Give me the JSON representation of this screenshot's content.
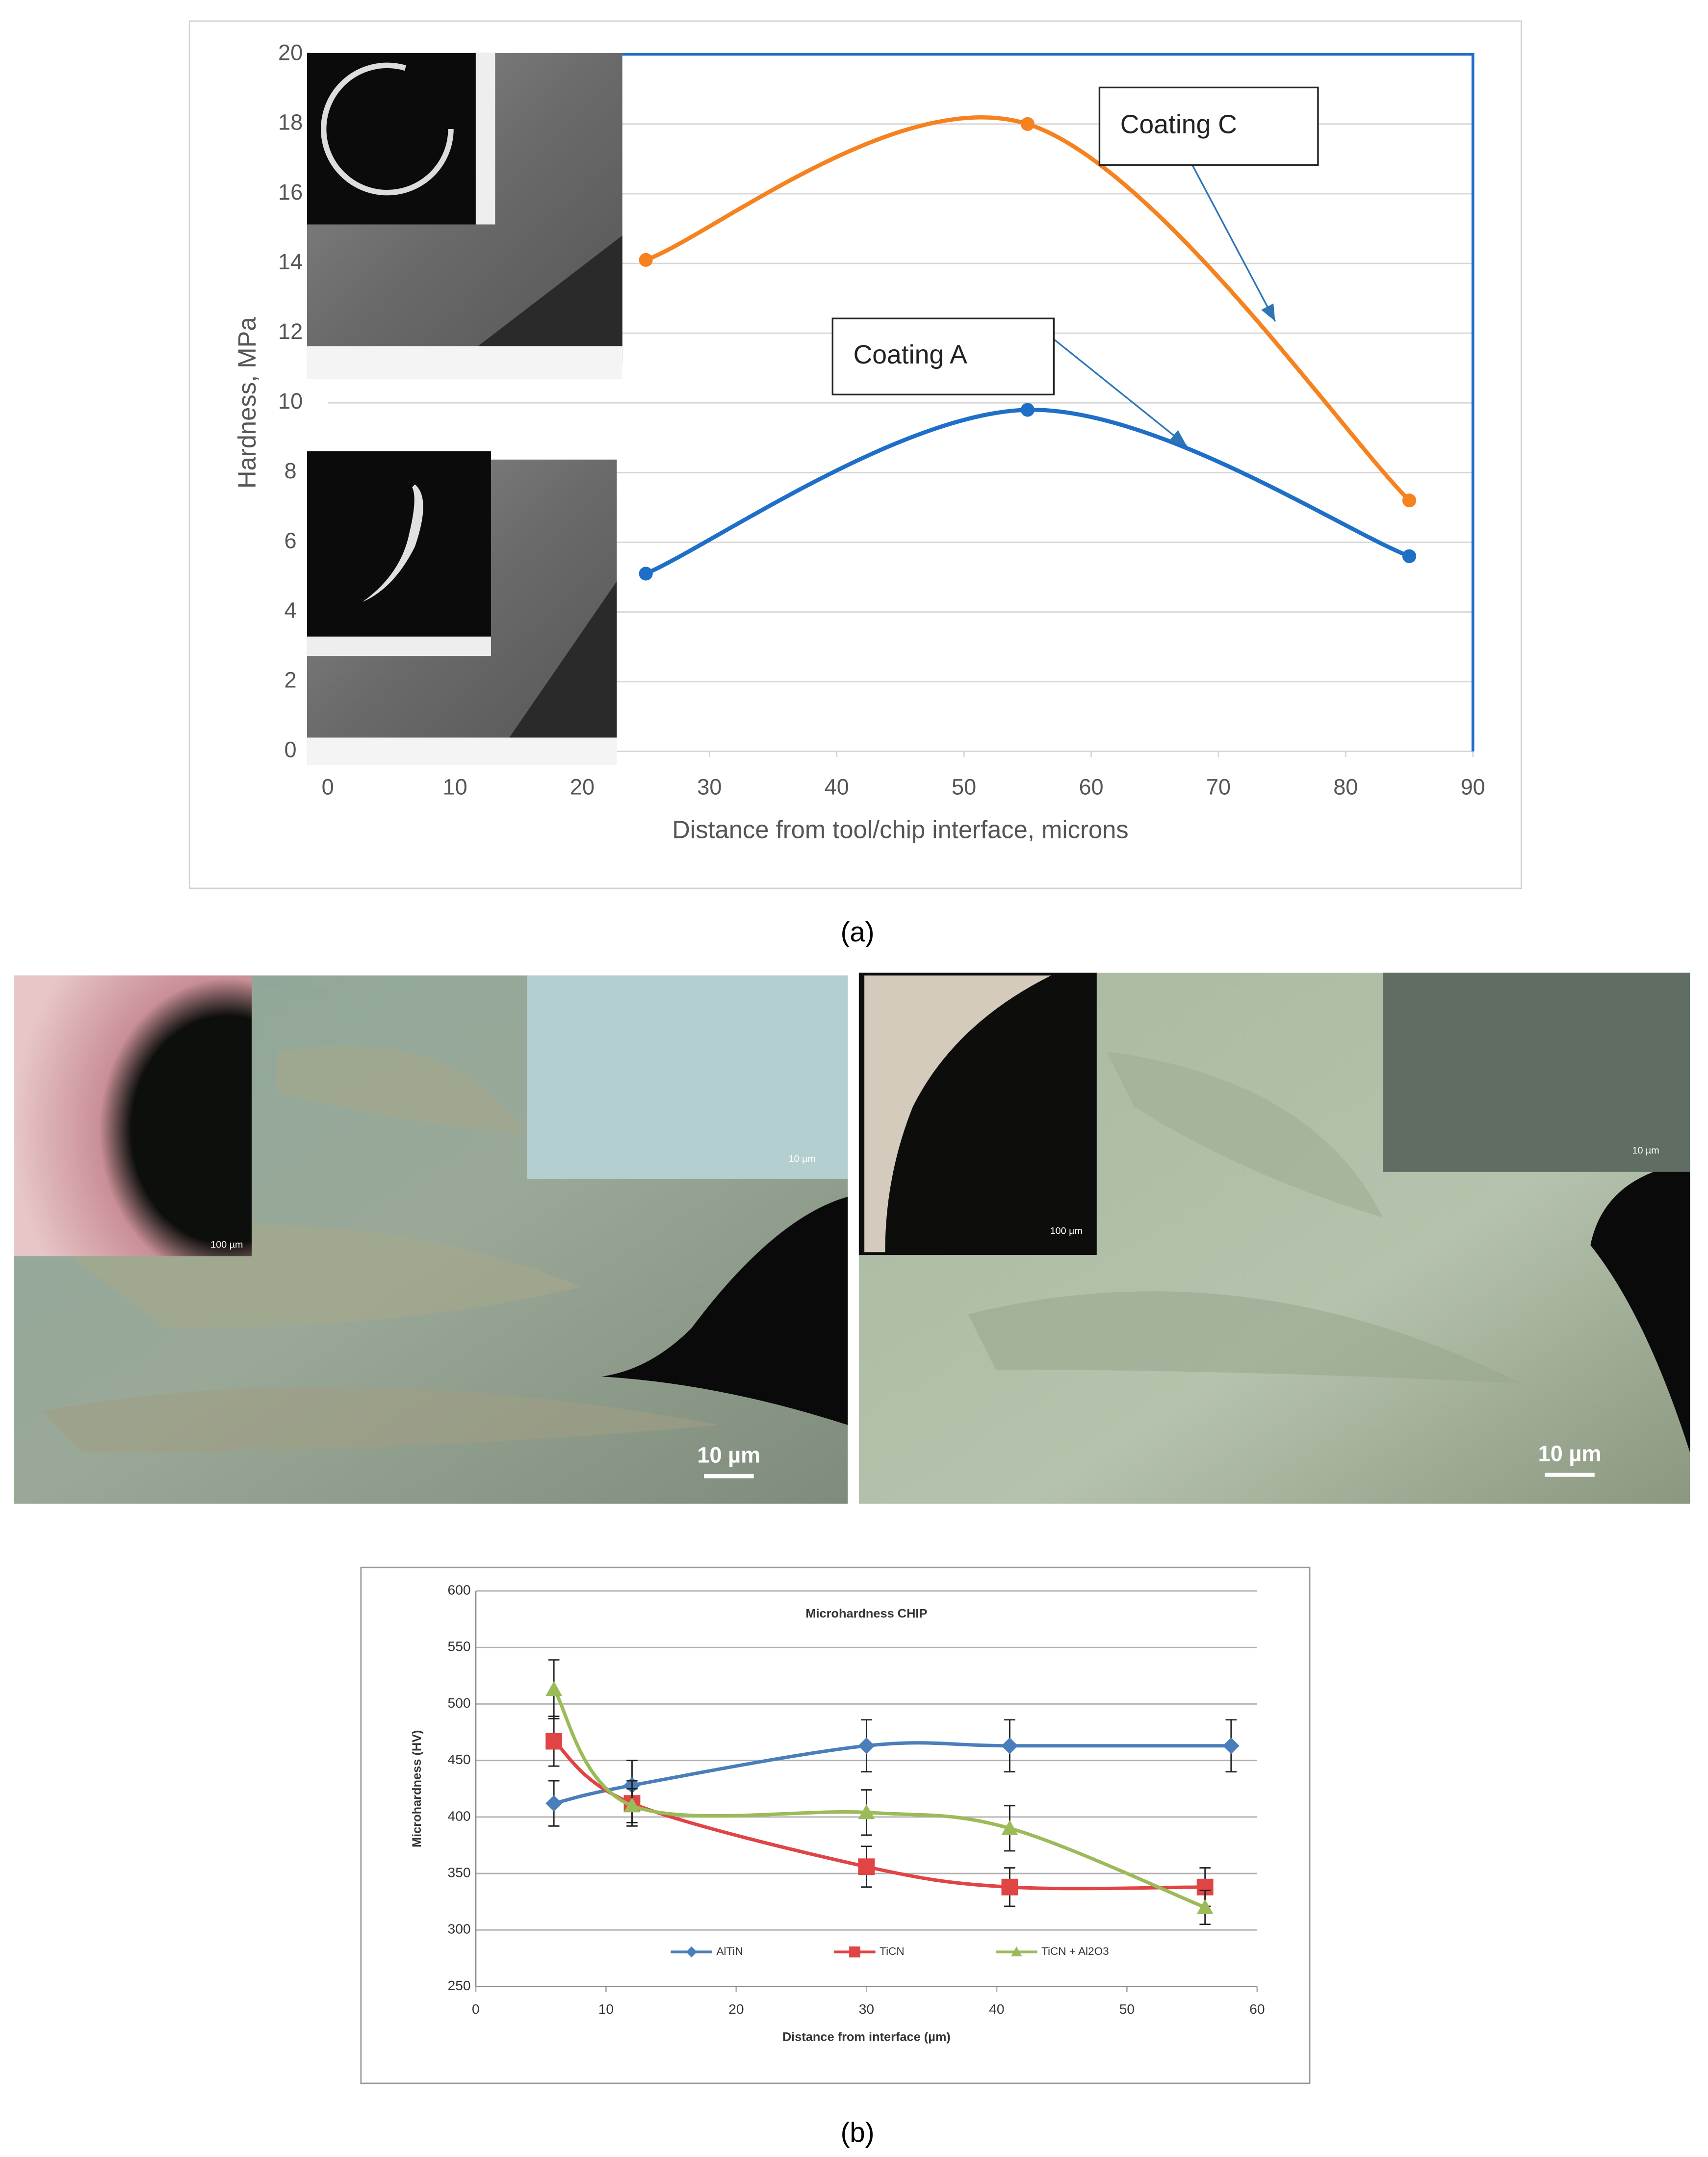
{
  "chart_data": [
    {
      "type": "line",
      "xlabel": "Distance from tool/chip interface, microns",
      "ylabel": "Hardness, MPa",
      "x": [
        25,
        55,
        85
      ],
      "xlim": [
        0,
        90
      ],
      "xticks": [
        0,
        10,
        20,
        30,
        40,
        50,
        60,
        70,
        80,
        90
      ],
      "ylim": [
        0,
        20
      ],
      "yticks": [
        0,
        2,
        4,
        6,
        8,
        10,
        12,
        14,
        16,
        18,
        20
      ],
      "grid": true,
      "smooth": true,
      "series": [
        {
          "name": "Coating A",
          "color": "#1f6fc8",
          "marker": "circle",
          "values": [
            5.1,
            9.8,
            5.6
          ]
        },
        {
          "name": "Coating C",
          "color": "#f5821f",
          "marker": "circle",
          "values": [
            14.1,
            18,
            7.2
          ]
        }
      ]
    },
    {
      "type": "line",
      "title": "Microhardness  CHIP",
      "xlabel": "Distance  from interface (µm)",
      "ylabel": "Microhardness  (HV)",
      "xlim": [
        0,
        60
      ],
      "xticks": [
        0,
        10,
        20,
        30,
        40,
        50,
        60
      ],
      "ylim": [
        250,
        600
      ],
      "yticks": [
        250,
        300,
        350,
        400,
        450,
        500,
        550,
        600
      ],
      "grid": true,
      "smooth": true,
      "legend": "bottom",
      "series": [
        {
          "name": "AlTiN",
          "color": "#4a7ebb",
          "marker": "diamond",
          "x": [
            6,
            12,
            30,
            41,
            58
          ],
          "values": [
            412,
            428,
            463,
            463,
            463
          ],
          "errors": [
            20,
            22,
            23,
            23,
            23
          ]
        },
        {
          "name": "TiCN",
          "color": "#e04444",
          "marker": "square",
          "x": [
            6,
            12,
            30,
            41,
            56
          ],
          "values": [
            467,
            412,
            356,
            338,
            338
          ],
          "errors": [
            22,
            20,
            18,
            17,
            17
          ]
        },
        {
          "name": "TiCN + Al2O3",
          "color": "#9bbb59",
          "marker": "triangle",
          "x": [
            6,
            12,
            30,
            41,
            56
          ],
          "values": [
            513,
            410,
            404,
            390,
            320
          ],
          "errors": [
            26,
            15,
            20,
            20,
            15
          ]
        }
      ]
    }
  ],
  "panel_labels": [
    "(a)",
    "(b)"
  ],
  "micrographs": [
    {
      "inset_scale": "100 µm",
      "detail_scale": "10 µm",
      "scale_bar": "10 µm"
    },
    {
      "inset_scale": "100 µm",
      "detail_scale": "10 µm",
      "scale_bar": "10 µm"
    }
  ]
}
